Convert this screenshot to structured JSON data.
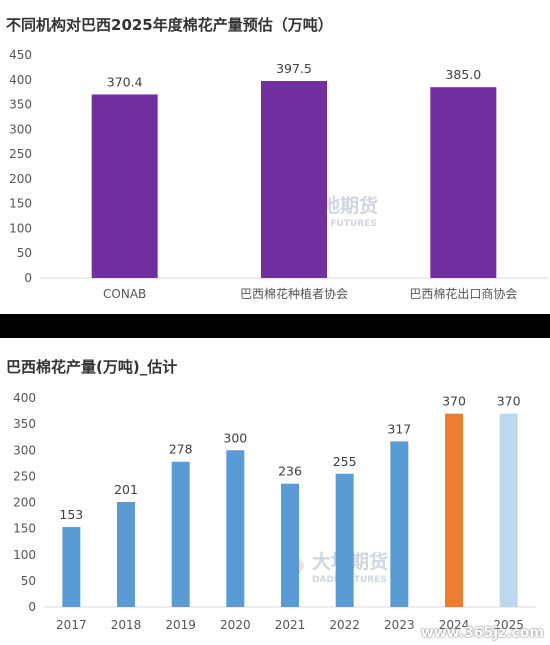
{
  "chart_data": [
    {
      "type": "bar",
      "title": "不同机构对巴西2025年度棉花产量预估（万吨）",
      "categories": [
        "CONAB",
        "巴西棉花种植者协会",
        "巴西棉花出口商协会"
      ],
      "values": [
        370.4,
        397.5,
        385.0
      ],
      "value_labels": [
        "370.4",
        "397.5",
        "385.0"
      ],
      "ylim": [
        0,
        450
      ],
      "yticks": [
        0,
        50,
        100,
        150,
        200,
        250,
        300,
        350,
        400,
        450
      ],
      "bar_colors": [
        "#7030a0",
        "#7030a0",
        "#7030a0"
      ],
      "grid": false,
      "legend": "none"
    },
    {
      "type": "bar",
      "title": "巴西棉花产量(万吨)_估计",
      "categories": [
        "2017",
        "2018",
        "2019",
        "2020",
        "2021",
        "2022",
        "2023",
        "2024",
        "2025"
      ],
      "values": [
        153,
        201,
        278,
        300,
        236,
        255,
        317,
        370,
        370
      ],
      "value_labels": [
        "153",
        "201",
        "278",
        "300",
        "236",
        "255",
        "317",
        "370",
        "370"
      ],
      "ylim": [
        0,
        400
      ],
      "yticks": [
        0,
        50,
        100,
        150,
        200,
        250,
        300,
        350,
        400
      ],
      "bar_colors": [
        "#5b9bd5",
        "#5b9bd5",
        "#5b9bd5",
        "#5b9bd5",
        "#5b9bd5",
        "#5b9bd5",
        "#5b9bd5",
        "#ed7d31",
        "#bdd7ee"
      ],
      "grid": false,
      "legend": "none"
    }
  ],
  "watermark": {
    "cn": "大地期货",
    "en": "DADI FUTURES"
  },
  "footer_watermark": "www.365jz.com"
}
